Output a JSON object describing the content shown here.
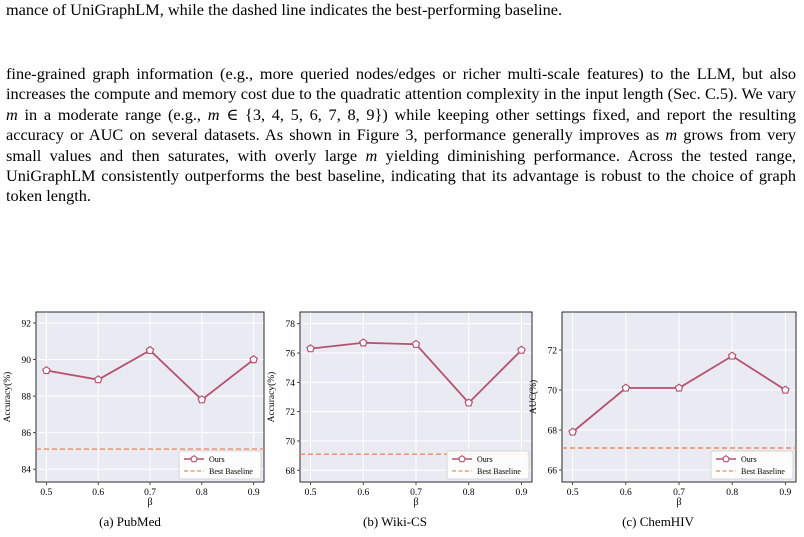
{
  "text": {
    "top_line": "mance of UniGraphLM, while the dashed line indicates the best-performing baseline.",
    "para_before_1": "fine-grained graph information (e.g., more queried nodes/edges or richer multi-scale features) to the LLM, but also increases the compute and memory cost due to the quadratic attention complexity in the input length (Sec. C.5). We vary ",
    "para_m1": "m",
    "para_before_2": " in a moderate range (e.g., ",
    "para_m2": "m",
    "para_set": " ∈ {3, 4, 5, 6, 7, 8, 9}",
    "para_after_set": ") while keeping other settings fixed, and report the resulting accuracy or AUC on several datasets. As shown in Figure 3, performance generally improves as ",
    "para_m3": "m",
    "para_after_m3": " grows from very small values and then saturates, with overly large ",
    "para_m4": "m",
    "para_end": " yielding diminishing performance. Across the tested range, UniGraphLM consistently outperforms the best baseline, indicating that its advantage is robust to the choice of graph token length."
  },
  "colors": {
    "ours": "#b5526f",
    "baseline": "#ee8a5b",
    "plot_bg": "#eaeaf2",
    "grid": "#ffffff"
  },
  "chart_data": [
    {
      "type": "line",
      "caption": "(a) PubMed",
      "xlabel": "β",
      "ylabel": "Accuracy(%)",
      "x": [
        0.5,
        0.6,
        0.7,
        0.8,
        0.9
      ],
      "xticks": [
        "0.5",
        "0.6",
        "0.7",
        "0.8",
        "0.9"
      ],
      "xlim": [
        0.48,
        0.92
      ],
      "ylim": [
        83.3,
        92.6
      ],
      "yticks": [
        84,
        86,
        88,
        90,
        92
      ],
      "series": [
        {
          "name": "Ours",
          "values": [
            89.4,
            88.9,
            90.5,
            87.8,
            90.0
          ],
          "style": "line-marker-pentagon"
        },
        {
          "name": "Best Baseline",
          "constant": 85.1,
          "style": "dashed"
        }
      ],
      "legend": "lower-right",
      "grid": true
    },
    {
      "type": "line",
      "caption": "(b) Wiki-CS",
      "xlabel": "β",
      "ylabel": "Accuracy(%)",
      "x": [
        0.5,
        0.6,
        0.7,
        0.8,
        0.9
      ],
      "xticks": [
        "0.5",
        "0.6",
        "0.7",
        "0.8",
        "0.9"
      ],
      "xlim": [
        0.48,
        0.92
      ],
      "ylim": [
        67.2,
        78.8
      ],
      "yticks": [
        68,
        70,
        72,
        74,
        76,
        78
      ],
      "series": [
        {
          "name": "Ours",
          "values": [
            76.3,
            76.7,
            76.6,
            72.6,
            76.2
          ],
          "style": "line-marker-pentagon"
        },
        {
          "name": "Best Baseline",
          "constant": 69.1,
          "style": "dashed"
        }
      ],
      "legend": "lower-right",
      "grid": true
    },
    {
      "type": "line",
      "caption": "(c) ChemHIV",
      "xlabel": "β",
      "ylabel": "AUC(%)",
      "x": [
        0.5,
        0.6,
        0.7,
        0.8,
        0.9
      ],
      "xticks": [
        "0.5",
        "0.6",
        "0.7",
        "0.8",
        "0.9"
      ],
      "xlim": [
        0.48,
        0.92
      ],
      "ylim": [
        65.4,
        73.9
      ],
      "yticks": [
        66,
        68,
        70,
        72
      ],
      "series": [
        {
          "name": "Ours",
          "values": [
            67.9,
            70.1,
            70.1,
            71.7,
            70.0
          ],
          "style": "line-marker-pentagon"
        },
        {
          "name": "Best Baseline",
          "constant": 67.1,
          "style": "dashed"
        }
      ],
      "legend": "lower-right",
      "grid": true
    }
  ]
}
